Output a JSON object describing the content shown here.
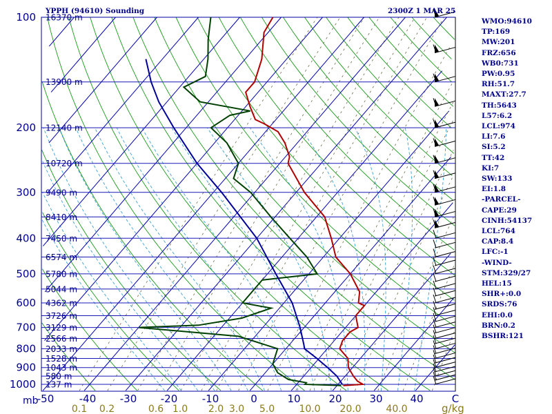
{
  "header": {
    "station": "YPPH (94610) Sounding",
    "time": "2300Z  1 MAR 25"
  },
  "stats": [
    "WMO:94610",
    "TP:169",
    "MW:201",
    "FRZ:656",
    "WB0:731",
    "PW:0.95",
    "RH:51.7",
    "MAXT:27.7",
    "TH:5643",
    "L57:6.2",
    "LCL:974",
    "LI:7.6",
    "SI:5.2",
    "TT:42",
    "KI:7",
    "SW:133",
    "EI:1.8",
    "-PARCEL-",
    "CAPE:29",
    "CINH:54137",
    "LCL:764",
    "CAP:8.4",
    "LFC:-1",
    "-WIND-",
    "STM:329/27",
    "HEL:15",
    "SHR+:0.0",
    "SRDS:76",
    "EHI:0.0",
    "BRN:0.2",
    "BSHR:121"
  ],
  "chart_data": {
    "type": "line",
    "title": "YPPH (94610) Sounding",
    "y_axis_unit": "mb",
    "x_axis_unit": "C",
    "mixing_ratio_unit": "g/kg",
    "pressure_ticks": [
      100,
      200,
      300,
      400,
      500,
      600,
      700,
      800,
      900,
      1000
    ],
    "temperature_ticks": [
      -50,
      -40,
      -30,
      -20,
      -10,
      0,
      10,
      20,
      30,
      40,
      "C"
    ],
    "mixing_ratio_labels": [
      "0.1",
      "0.2",
      "0.6",
      "1.0",
      "2.0",
      "3.0",
      "5.0",
      "10.0",
      "20.0",
      "40.0"
    ],
    "height_labels": [
      {
        "p": 100,
        "text": "16370 m"
      },
      {
        "p": 150,
        "text": "13900 m"
      },
      {
        "p": 200,
        "text": "12140 m"
      },
      {
        "p": 250,
        "text": "10720 m"
      },
      {
        "p": 300,
        "text": "9490 m"
      },
      {
        "p": 350,
        "text": "8410 m"
      },
      {
        "p": 400,
        "text": "7450 m"
      },
      {
        "p": 450,
        "text": "6574 m"
      },
      {
        "p": 500,
        "text": "5780 m"
      },
      {
        "p": 550,
        "text": "5044 m"
      },
      {
        "p": 600,
        "text": "4362 m"
      },
      {
        "p": 650,
        "text": "3726 m"
      },
      {
        "p": 700,
        "text": "3129 m"
      },
      {
        "p": 750,
        "text": "2566 m"
      },
      {
        "p": 800,
        "text": "2033 m"
      },
      {
        "p": 850,
        "text": "1528 m"
      },
      {
        "p": 900,
        "text": "1043 m"
      },
      {
        "p": 950,
        "text": "580 m"
      },
      {
        "p": 1000,
        "text": "137 m"
      }
    ],
    "series": [
      {
        "type": "temperature",
        "color": "#b00000",
        "points": [
          [
            1008,
            21.5
          ],
          [
            1000,
            26
          ],
          [
            980,
            24
          ],
          [
            950,
            22
          ],
          [
            900,
            19
          ],
          [
            850,
            17
          ],
          [
            800,
            13
          ],
          [
            760,
            12
          ],
          [
            720,
            12
          ],
          [
            700,
            13
          ],
          [
            650,
            10
          ],
          [
            610,
            10
          ],
          [
            600,
            8
          ],
          [
            560,
            6
          ],
          [
            500,
            0
          ],
          [
            450,
            -7
          ],
          [
            400,
            -12
          ],
          [
            350,
            -18
          ],
          [
            300,
            -28
          ],
          [
            250,
            -38
          ],
          [
            240,
            -39
          ],
          [
            220,
            -43
          ],
          [
            205,
            -47
          ],
          [
            195,
            -52
          ],
          [
            190,
            -55
          ],
          [
            175,
            -59
          ],
          [
            160,
            -63
          ],
          [
            150,
            -63
          ],
          [
            130,
            -66
          ],
          [
            110,
            -71
          ],
          [
            100,
            -72
          ]
        ]
      },
      {
        "type": "dewpoint",
        "color": "#004000",
        "points": [
          [
            1008,
            21
          ],
          [
            1000,
            12
          ],
          [
            990,
            12
          ],
          [
            970,
            7
          ],
          [
            930,
            3
          ],
          [
            880,
            0
          ],
          [
            800,
            -2
          ],
          [
            740,
            -14
          ],
          [
            700,
            -40
          ],
          [
            690,
            -26
          ],
          [
            660,
            -17
          ],
          [
            620,
            -12
          ],
          [
            600,
            -20
          ],
          [
            580,
            -20
          ],
          [
            520,
            -20
          ],
          [
            500,
            -8
          ],
          [
            450,
            -14
          ],
          [
            400,
            -22
          ],
          [
            350,
            -31
          ],
          [
            300,
            -41
          ],
          [
            275,
            -48
          ],
          [
            250,
            -50
          ],
          [
            220,
            -57
          ],
          [
            200,
            -64
          ],
          [
            185,
            -62
          ],
          [
            180,
            -58
          ],
          [
            170,
            -72
          ],
          [
            155,
            -79
          ],
          [
            145,
            -76
          ],
          [
            130,
            -79
          ],
          [
            115,
            -83
          ],
          [
            100,
            -87
          ]
        ]
      },
      {
        "type": "parcel",
        "color": "#000099",
        "points": [
          [
            1000,
            21
          ],
          [
            950,
            18
          ],
          [
            900,
            14
          ],
          [
            850,
            9.5
          ],
          [
            800,
            4.5
          ],
          [
            780,
            3.5
          ],
          [
            700,
            -1
          ],
          [
            600,
            -8
          ],
          [
            500,
            -18
          ],
          [
            400,
            -30
          ],
          [
            300,
            -48
          ],
          [
            250,
            -60
          ],
          [
            200,
            -73
          ],
          [
            170,
            -82
          ],
          [
            150,
            -88
          ],
          [
            130,
            -94
          ]
        ]
      }
    ]
  }
}
